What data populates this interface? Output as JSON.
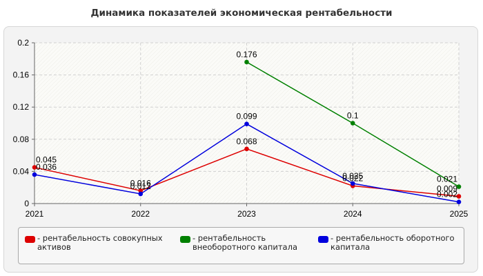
{
  "chart_data": {
    "type": "line",
    "title": "Динамика показателей экономическая рентабельности",
    "xlabel": "",
    "ylabel": "",
    "categories": [
      "2021",
      "2022",
      "2023",
      "2024",
      "2025"
    ],
    "ylim": [
      0,
      0.2
    ],
    "y_ticks": [
      "0",
      "0.04",
      "0.08",
      "0.12",
      "0.16",
      "0.2"
    ],
    "grid": true,
    "legend_position": "bottom",
    "series": [
      {
        "name": "рентабельность совокупных активов",
        "legend_label": "- рентабельность совокупных активов",
        "color": "#dd0000",
        "values": [
          0.045,
          0.016,
          0.068,
          0.022,
          0.009
        ],
        "labels": [
          "0.045",
          "0.016",
          "0.068",
          "0.022",
          "0.009"
        ]
      },
      {
        "name": "рентабельность внеоборотного капитала",
        "legend_label": "- рентабельность внеоборотного капитала",
        "color": "#008000",
        "values": [
          null,
          null,
          0.176,
          0.1,
          0.021
        ],
        "labels": [
          null,
          null,
          "0.176",
          "0.1",
          "0.021"
        ]
      },
      {
        "name": "рентабельность оборотного капитала",
        "legend_label": "- рентабельность оборотного капитала",
        "color": "#0000dd",
        "values": [
          0.036,
          0.012,
          0.099,
          0.025,
          0.002
        ],
        "labels": [
          "0.036",
          "0.012",
          "0.099",
          "0.025",
          "0.002"
        ]
      }
    ]
  }
}
